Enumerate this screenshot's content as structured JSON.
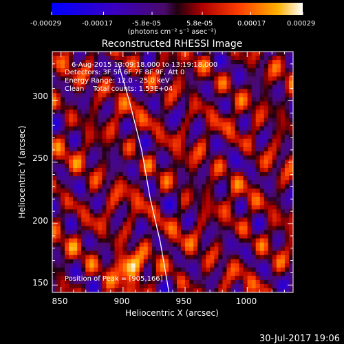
{
  "colorbar": {
    "tick_labels": [
      "-0.00029",
      "-0.00017",
      "-5.8e-05",
      "5.8e-05",
      "0.00017",
      "0.00029"
    ],
    "units": "(photons cm⁻² s⁻¹ asec⁻²)",
    "range": [
      -0.00029,
      0.00029
    ]
  },
  "chart_data": {
    "type": "heatmap",
    "title": "Reconstructed RHESSI Image",
    "xlabel": "Heliocentric X (arcsec)",
    "ylabel": "Heliocentric Y (arcsec)",
    "xlim": [
      843,
      1037
    ],
    "ylim": [
      144,
      340
    ],
    "x_ticks": [
      850,
      900,
      950,
      1000
    ],
    "y_ticks": [
      150,
      200,
      250,
      300
    ],
    "annotations": {
      "time": "6-Aug-2015 13:09:18.000 to 13:19:18.000",
      "detectors": "Detectors: 3F 5F 6F 7F 8F 9F, Att 0",
      "energy": "Energy Range: 12.0 - 25.0 keV",
      "clean": "Clean    Total counts: 1.53E+04",
      "peak": "Position of Peak = [905,166]"
    },
    "peak": [
      905,
      166
    ],
    "limb_curve": [
      [
        896,
        331
      ],
      [
        905,
        300
      ],
      [
        915,
        260
      ],
      [
        922,
        220
      ],
      [
        930,
        185
      ],
      [
        937,
        144
      ]
    ]
  },
  "footer": {
    "date": "30-Jul-2017 19:06"
  }
}
